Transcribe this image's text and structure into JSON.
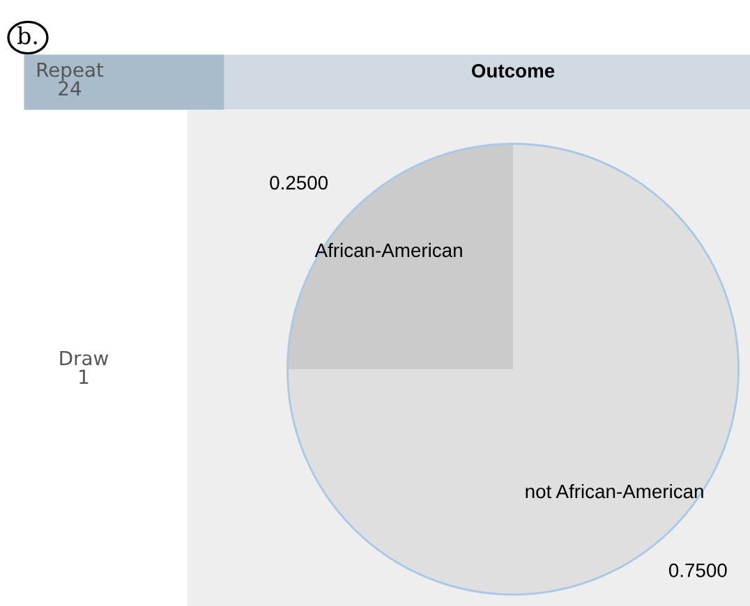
{
  "chart_data": {
    "type": "pie",
    "title": "Outcome",
    "categories": [
      "African-American",
      "not African-American"
    ],
    "values": [
      0.25,
      0.75
    ],
    "colors": [
      "#cbcbcb",
      "#dfdfdf"
    ],
    "value_labels": [
      "0.2500",
      "0.7500"
    ],
    "annotations": [
      "b.",
      "Repeat\n24",
      "Draw\n1"
    ]
  }
}
